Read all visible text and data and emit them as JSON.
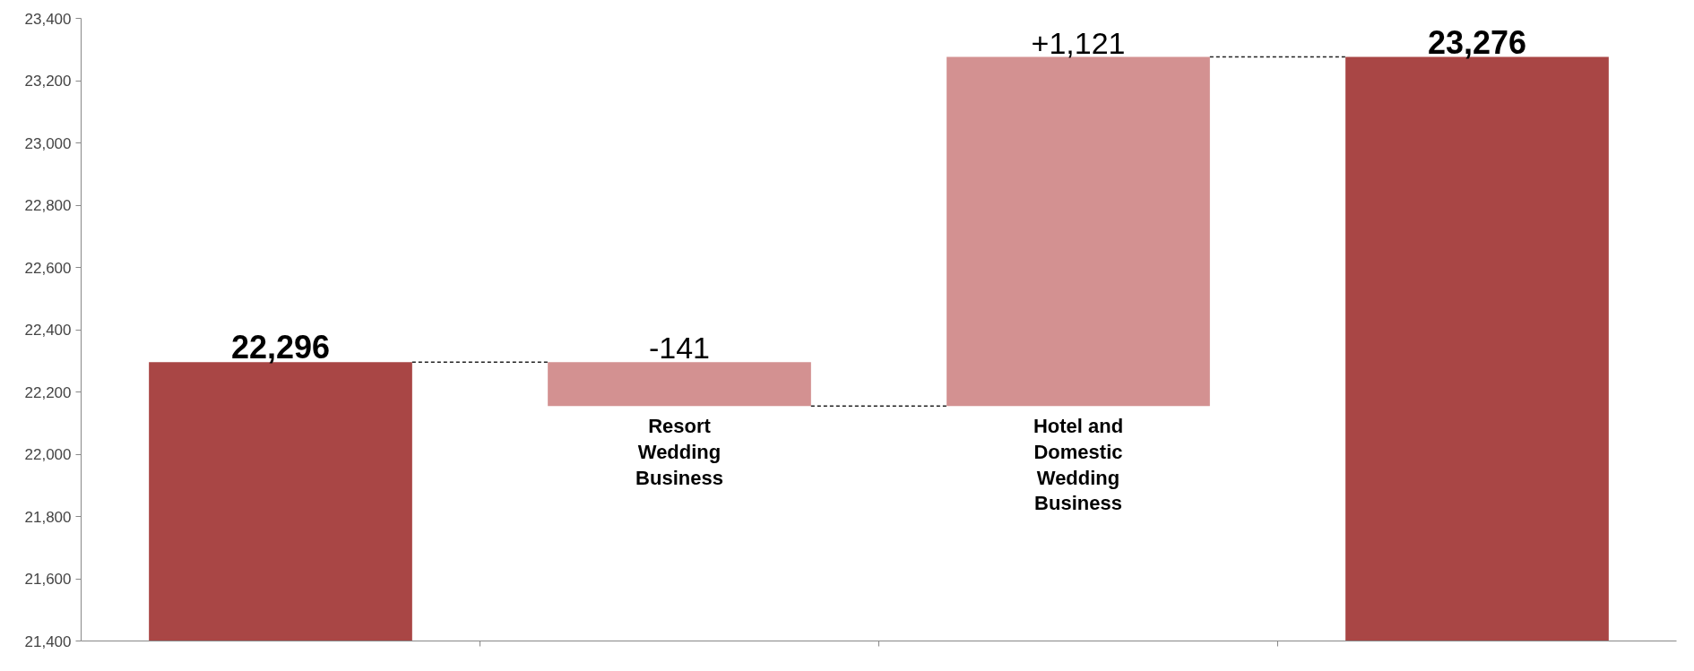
{
  "chart_data": {
    "type": "bar",
    "categories": [
      null,
      "Resort Wedding Business",
      "Hotel and Domestic Wedding Business",
      null
    ],
    "values": [
      896,
      -141,
      1121,
      1876
    ],
    "base": [
      21400,
      22296,
      22155,
      21400
    ],
    "colors": [
      "#a94645",
      "#d39191",
      "#d39191",
      "#a94645"
    ],
    "value_labels": [
      "22,296",
      "-141",
      "+1,121",
      "23,276"
    ],
    "ylim": [
      21400,
      23400
    ],
    "yticks": [
      {
        "value": 21400,
        "label": "21,400"
      },
      {
        "value": 21600,
        "label": "21,600"
      },
      {
        "value": 21800,
        "label": "21,800"
      },
      {
        "value": 22000,
        "label": "22,000"
      },
      {
        "value": 22200,
        "label": "22,200"
      },
      {
        "value": 22400,
        "label": "22,400"
      },
      {
        "value": 22600,
        "label": "22,600"
      },
      {
        "value": 22800,
        "label": "22,800"
      },
      {
        "value": 23000,
        "label": "23,000"
      },
      {
        "value": 23200,
        "label": "23,200"
      },
      {
        "value": 23400,
        "label": "23,400"
      }
    ],
    "ref_lines": [
      {
        "axis": "y",
        "value": 22296,
        "label": null,
        "color": "#222222",
        "line_style": "dashed"
      },
      {
        "axis": "y",
        "value": 22155,
        "label": null,
        "color": "#222222",
        "line_style": "dashed"
      },
      {
        "axis": "y",
        "value": 23276,
        "label": null,
        "color": "#222222",
        "line_style": "dashed"
      }
    ],
    "grid": false
  }
}
